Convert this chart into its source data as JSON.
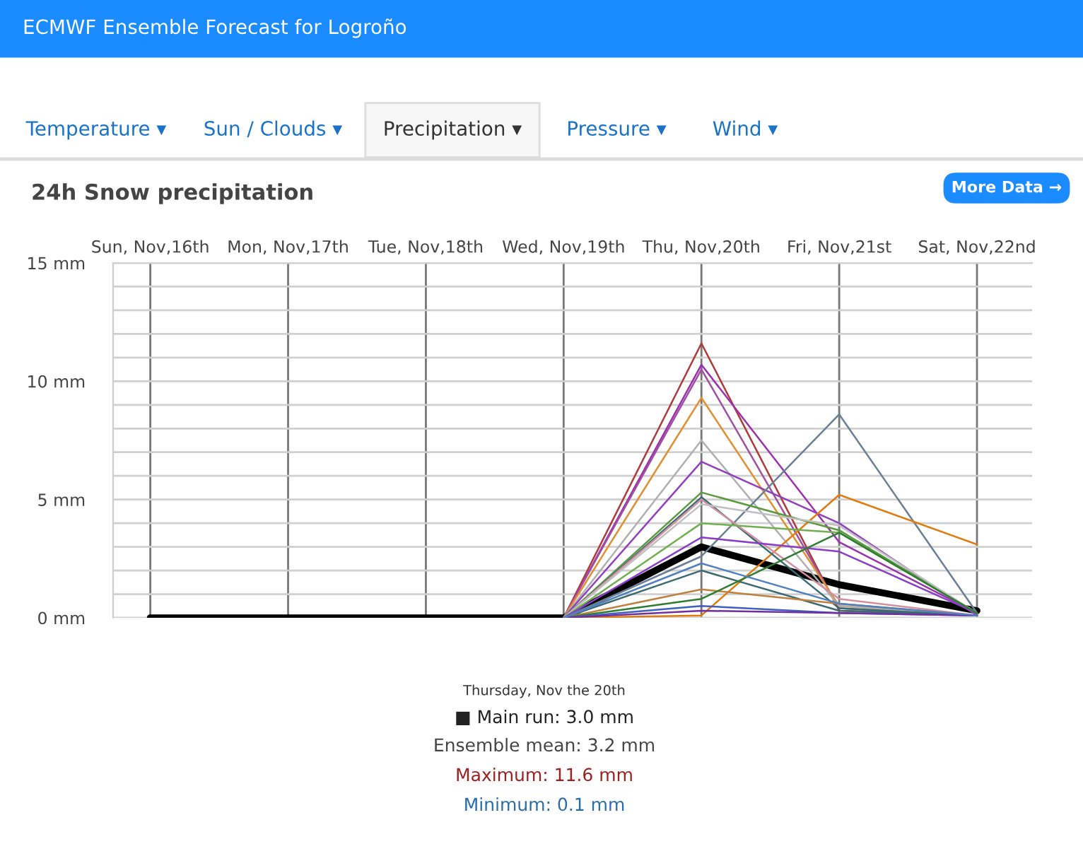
{
  "chart_data": {
    "type": "line",
    "title": "24h Snow precipitation",
    "categories": [
      "Sun, Nov,16th",
      "Mon, Nov,17th",
      "Tue, Nov,18th",
      "Wed, Nov,19th",
      "Thu, Nov,20th",
      "Fri, Nov,21st",
      "Sat, Nov,22nd"
    ],
    "series": [
      {
        "color": "#000000",
        "values": [
          0,
          0,
          0,
          0,
          3.0,
          1.4,
          0.3
        ]
      },
      {
        "color": "#b03a3a",
        "values": [
          null,
          null,
          null,
          0,
          11.6,
          0.3,
          0.1
        ]
      },
      {
        "color": "#9b30b0",
        "values": [
          null,
          null,
          null,
          0,
          10.7,
          3.2,
          0.2
        ]
      },
      {
        "color": "#a050a0",
        "values": [
          null,
          null,
          null,
          0,
          10.5,
          0.4,
          0.1
        ]
      },
      {
        "color": "#e09030",
        "values": [
          null,
          null,
          null,
          0,
          9.3,
          0.5,
          0.1
        ]
      },
      {
        "color": "#b0b0b0",
        "values": [
          null,
          null,
          null,
          0,
          7.5,
          0.5,
          0.1
        ]
      },
      {
        "color": "#9040c0",
        "values": [
          null,
          null,
          null,
          0,
          6.6,
          4.0,
          0.1
        ]
      },
      {
        "color": "#6a7f95",
        "values": [
          null,
          null,
          null,
          0,
          2.6,
          8.6,
          0.2
        ]
      },
      {
        "color": "#e07b10",
        "values": [
          null,
          null,
          null,
          0,
          0.1,
          5.2,
          3.1
        ]
      },
      {
        "color": "#5a9a40",
        "values": [
          null,
          null,
          null,
          0,
          5.3,
          3.7,
          0.2
        ]
      },
      {
        "color": "#3a6b70",
        "values": [
          null,
          null,
          null,
          0,
          5.1,
          0.4,
          0.1
        ]
      },
      {
        "color": "#d090a0",
        "values": [
          null,
          null,
          null,
          0,
          5.0,
          0.8,
          0.1
        ]
      },
      {
        "color": "#c0c0c0",
        "values": [
          null,
          null,
          null,
          0,
          4.8,
          3.9,
          0.2
        ]
      },
      {
        "color": "#70b050",
        "values": [
          null,
          null,
          null,
          0,
          4.0,
          3.6,
          0.2
        ]
      },
      {
        "color": "#8a3ec8",
        "values": [
          null,
          null,
          null,
          0,
          3.4,
          2.8,
          0.2
        ]
      },
      {
        "color": "#3d6a70",
        "values": [
          null,
          null,
          null,
          0,
          2.0,
          0.3,
          0.1
        ]
      },
      {
        "color": "#c08040",
        "values": [
          null,
          null,
          null,
          0,
          1.2,
          0.6,
          0.1
        ]
      },
      {
        "color": "#2e7d32",
        "values": [
          null,
          null,
          null,
          0,
          0.8,
          3.6,
          0.2
        ]
      },
      {
        "color": "#4060c0",
        "values": [
          null,
          null,
          null,
          0,
          0.5,
          0.2,
          0.1
        ]
      },
      {
        "color": "#7030a0",
        "values": [
          null,
          null,
          null,
          0,
          0.3,
          0.2,
          0.1
        ]
      },
      {
        "color": "#5080c0",
        "values": [
          null,
          null,
          null,
          0,
          2.3,
          0.6,
          0.1
        ]
      }
    ],
    "ylim": [
      0,
      15
    ],
    "yticks": [
      {
        "value": 0,
        "label": "0 mm"
      },
      {
        "value": 1,
        "label": null
      },
      {
        "value": 2,
        "label": null
      },
      {
        "value": 3,
        "label": null
      },
      {
        "value": 4,
        "label": null
      },
      {
        "value": 5,
        "label": "5 mm"
      },
      {
        "value": 6,
        "label": null
      },
      {
        "value": 7,
        "label": null
      },
      {
        "value": 8,
        "label": null
      },
      {
        "value": 9,
        "label": null
      },
      {
        "value": 10,
        "label": "10 mm"
      },
      {
        "value": 11,
        "label": null
      },
      {
        "value": 12,
        "label": null
      },
      {
        "value": 13,
        "label": null
      },
      {
        "value": 14,
        "label": null
      },
      {
        "value": 15,
        "label": "15 mm"
      }
    ],
    "grid": true,
    "annotations": [
      "ECMWF Ensemble Forecast for Logroño",
      "Temperature ▾",
      "Sun / Clouds ▾",
      "Precipitation ▾",
      "Pressure ▾",
      "Wind ▾",
      "More Data →",
      "Thursday, Nov the 20th",
      "■ Main run: 3.0 mm",
      "Ensemble mean: 3.2 mm",
      "Maximum: 11.6 mm",
      "Minimum: 0.1 mm"
    ]
  }
}
